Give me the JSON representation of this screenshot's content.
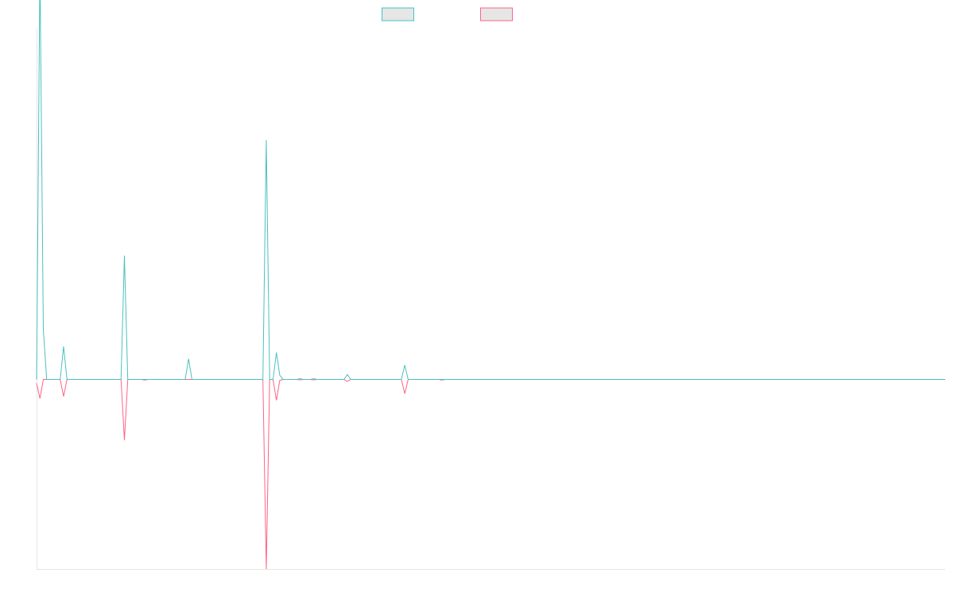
{
  "chart_data": {
    "type": "line",
    "title": "",
    "xlabel": "",
    "ylabel": "",
    "ylim": [
      -1,
      0.85
    ],
    "grid": false,
    "legend_position": "top-center",
    "colors": {
      "series_a": "#4bc0c0",
      "series_b": "#ff6384",
      "axis": "#e5e5e5"
    },
    "series": [
      {
        "name": "",
        "values": [
          0,
          1.0,
          0.12,
          0,
          0,
          0,
          0,
          0,
          0.08,
          0,
          0,
          0,
          0,
          0,
          0,
          0,
          0,
          0,
          0,
          0,
          0,
          0,
          0,
          0,
          0,
          0,
          0.3,
          0,
          0,
          0,
          0,
          0,
          0,
          0,
          0,
          0,
          0,
          0,
          0,
          0,
          0,
          0,
          0,
          0,
          0,
          0.05,
          0,
          0,
          0,
          0,
          0,
          0,
          0,
          0,
          0,
          0,
          0,
          0,
          0,
          0,
          0,
          0,
          0,
          0,
          0,
          0,
          0,
          0,
          0.58,
          0,
          0,
          0.065,
          0.01,
          0,
          0,
          0,
          0,
          0,
          0.002,
          0,
          0,
          0,
          0.002,
          0,
          0,
          0,
          0,
          0,
          0,
          0,
          0,
          0,
          0.012,
          0,
          0,
          0,
          0,
          0,
          0,
          0,
          0,
          0,
          0,
          0,
          0,
          0,
          0,
          0,
          0,
          0.035,
          0,
          0,
          0,
          0,
          0,
          0,
          0,
          0,
          0,
          0,
          0,
          0,
          0,
          0
        ],
        "color": "#4bc0c0"
      },
      {
        "name": "",
        "values": [
          -0.02,
          -0.1,
          0,
          0,
          0,
          0,
          0,
          0,
          -0.09,
          0,
          0,
          0,
          0,
          0,
          0,
          0,
          0,
          0,
          0,
          0,
          0,
          0,
          0,
          0,
          0,
          0,
          -0.32,
          0,
          0,
          0,
          0,
          0,
          -0.003,
          0,
          0,
          0,
          0,
          0,
          0,
          0,
          0,
          0,
          0,
          0,
          0,
          0,
          0,
          0,
          0,
          0,
          0,
          0,
          0,
          0,
          0,
          0,
          0,
          0,
          0,
          0,
          0,
          0,
          0,
          0,
          0,
          0,
          0,
          0,
          -1.0,
          0,
          0,
          -0.11,
          -0.005,
          0,
          0,
          0,
          0,
          0,
          -0.002,
          0,
          0,
          0,
          -0.002,
          0,
          0,
          0,
          0,
          0,
          0,
          0,
          0,
          0,
          -0.01,
          0,
          0,
          0,
          0,
          0,
          0,
          0,
          0,
          0,
          0,
          0,
          0,
          0,
          0,
          0,
          0,
          -0.075,
          0,
          0,
          0,
          0,
          0,
          0,
          0,
          0,
          0,
          0,
          -0.003,
          0,
          0
        ],
        "color": "#ff6384"
      }
    ],
    "x_count_total": 270
  }
}
